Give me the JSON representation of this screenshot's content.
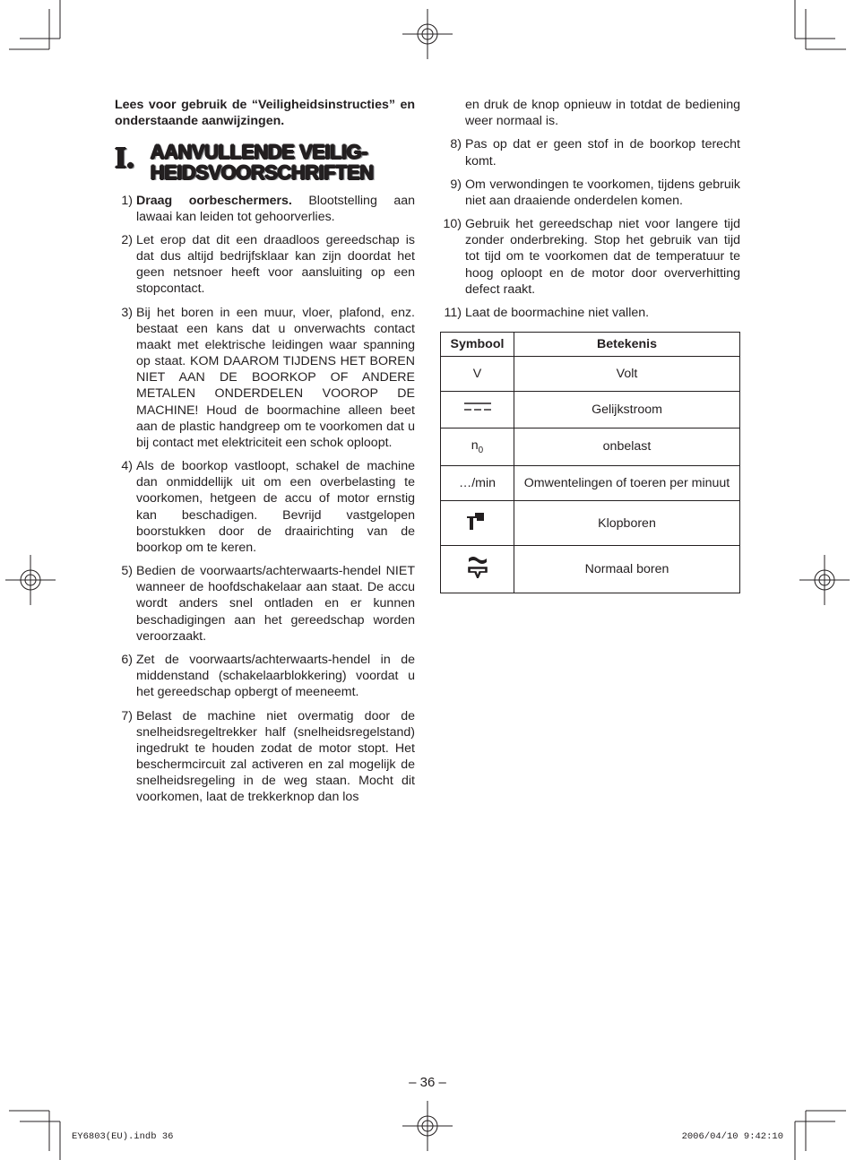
{
  "intro": "Lees voor gebruik de “Veiligheidsinstruc­ties” en onderstaande aanwijzingen.",
  "section": {
    "roman": "I.",
    "title_line1": "AANVULLENDE VEILIG-",
    "title_line2": "HEIDSVOORSCHRIFTEN"
  },
  "items_left": [
    {
      "n": "1)",
      "bold": "Draag oorbeschermers.",
      "rest": " Blootstel­ling aan lawaai kan leiden tot ge­hoorverlies."
    },
    {
      "n": "2)",
      "text": "Let erop dat dit een draadloos gereed­schap is dat dus altijd bedrijfsklaar kan zijn doordat het geen netsnoer heeft voor aansluiting op een stopcontact."
    },
    {
      "n": "3)",
      "text": "Bij het boren in een muur, vloer, plafond, enz. bestaat een kans dat u onverwachts contact maakt met elektrische leidingen waar spanning op staat. KOM DAAROM TIJDENS HET BOREN NIET AAN DE BOOR­KOP OF ANDERE METALEN ON­DERDELEN VOOROP DE MACHI­NE! Houd de boormachine alleen beet aan de plastic handgreep om te voorkomen dat u bij contact met elektriciteit een schok oploopt."
    },
    {
      "n": "4)",
      "text": "Als de boorkop vastloopt, schakel de machine dan onmiddellijk uit om een overbelasting te voorkomen, hetgeen de accu of motor ernstig kan beschadigen. Bevrijd vastgelo­pen boorstukken door de draairich­ting van de boorkop om te keren."
    },
    {
      "n": "5)",
      "text": "Bedien de voorwaarts/achter­waarts-hendel NIET wanneer de hoofdschakelaar aan staat. De accu wordt anders snel ontladen en er kunnen beschadigingen aan het ge­reedschap worden veroorzaakt."
    },
    {
      "n": "6)",
      "text": "Zet de voorwaarts/achterwaarts-hendel in de middenstand (scha­kelaarblokkering) voordat u het ge­reedschap opbergt of meeneemt."
    },
    {
      "n": "7)",
      "text": "Belast de machine niet overmatig door de snelheidsregeltrekker half (snelheidsregelstand) ingedrukt te houden zodat de motor stopt. Het beschermcircuit zal activeren en zal mogelijk de snelheidsregeling in de weg staan. Mocht dit voorko­men, laat de trekkerknop dan los"
    }
  ],
  "items_right": [
    {
      "n": "",
      "text": "en druk de knop opnieuw in totdat de bediening weer normaal is."
    },
    {
      "n": "8)",
      "text": "Pas op dat er geen stof in de boorkop terecht komt."
    },
    {
      "n": "9)",
      "text": "Om verwondingen te voorkomen, tijdens gebruik niet aan draaiende onderdelen komen."
    },
    {
      "n": "10)",
      "text": "Gebruik het gereedschap niet voor langere tijd zonder onderbreking. Stop het gebruik van tijd tot tijd om te voorkomen dat de temperatuur te hoog oploopt en de motor door oververhitting defect raakt."
    },
    {
      "n": "11)",
      "text": "Laat de boormachine niet vallen."
    }
  ],
  "table": {
    "head_symbol": "Symbool",
    "head_meaning": "Betekenis",
    "rows": [
      {
        "sym_type": "text",
        "sym": "V",
        "meaning": "Volt"
      },
      {
        "sym_type": "dc",
        "meaning": "Gelijkstroom"
      },
      {
        "sym_type": "n0",
        "meaning": "onbelast"
      },
      {
        "sym_type": "text",
        "sym": "…/min",
        "meaning": "Omwentelingen of toeren per minuut"
      },
      {
        "sym_type": "hammer",
        "meaning": "Klopboren"
      },
      {
        "sym_type": "drill",
        "meaning": "Normaal boren"
      }
    ]
  },
  "page_number": "– 36 –",
  "footer_left": "EY6803(EU).indb   36",
  "footer_right": "2006/04/10   9:42:10"
}
